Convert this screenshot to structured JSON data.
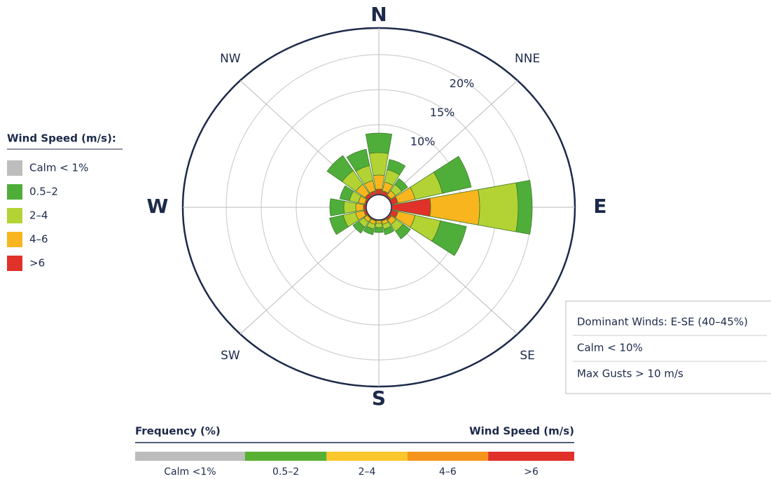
{
  "chart_data": {
    "type": "windrose",
    "categories": [
      "N",
      null,
      "NNE",
      null,
      "E",
      null,
      "SE",
      null,
      "S",
      null,
      "SW",
      null,
      "W",
      null,
      "NW",
      null
    ],
    "series": [
      {
        "name": "0.5–2",
        "color": "#4fae3a",
        "values": [
          2.8,
          1.5,
          1.0,
          4.2,
          2.0,
          3.8,
          1.3,
          0.8,
          0.7,
          0.8,
          1.0,
          2.0,
          2.0,
          1.4,
          2.6,
          2.4
        ]
      },
      {
        "name": "2–4",
        "color": "#b3d335",
        "values": [
          3.2,
          1.8,
          1.1,
          4.0,
          5.5,
          3.7,
          1.2,
          0.7,
          0.6,
          0.7,
          0.9,
          1.8,
          1.7,
          1.3,
          2.4,
          2.2
        ]
      },
      {
        "name": "4–6",
        "color": "#f9b51e",
        "values": [
          2.0,
          1.3,
          0.8,
          2.5,
          7.0,
          2.5,
          0.8,
          0.5,
          0.4,
          0.5,
          0.6,
          1.2,
          1.1,
          0.9,
          1.6,
          1.5
        ]
      },
      {
        "name": ">6",
        "color": "#e0322a",
        "values": [
          0.8,
          0.6,
          0.3,
          1.0,
          5.6,
          1.0,
          0.4,
          0.2,
          0.1,
          0.2,
          0.2,
          0.4,
          0.4,
          0.3,
          0.6,
          0.6
        ]
      }
    ],
    "calm": {
      "name": "Calm < 1%",
      "color": "#bdbdbd"
    },
    "legend_title": "Wind Speed (m/s):",
    "rlim": [
      0,
      25
    ],
    "rticks": [
      {
        "value": 10,
        "label": "10%"
      },
      {
        "value": 15,
        "label": "15%"
      },
      {
        "value": 20,
        "label": "20%"
      }
    ],
    "info": [
      "Dominant Winds: E-SE (40–45%)",
      "Calm < 10%",
      "Max Gusts > 10 m/s"
    ],
    "scale_bar": {
      "left_title": "Frequency (%)",
      "right_title": "Wind Speed (m/s)",
      "labels": [
        "Calm <1%",
        "0.5–2",
        "2–4",
        "4–6",
        ">6"
      ],
      "colors": [
        "#bdbdbd",
        "#58b033",
        "#fbc72c",
        "#f7941d",
        "#e0322a"
      ]
    }
  }
}
